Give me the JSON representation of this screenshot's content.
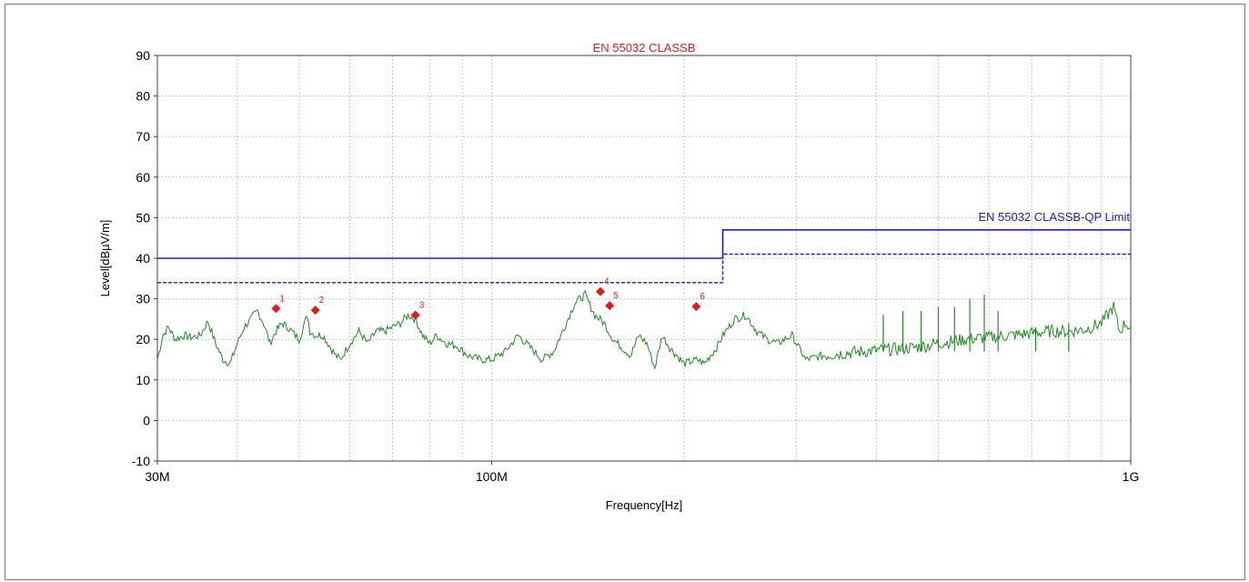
{
  "chart_data": {
    "type": "line",
    "title": "EN 55032 CLASSB",
    "xlabel": "Frequency[Hz]",
    "ylabel": "Level[dBµV/m]",
    "x_scale": "log",
    "xlim": [
      30000000,
      1000000000
    ],
    "ylim": [
      -10,
      90
    ],
    "grid": true,
    "y_ticks": [
      "90",
      "80",
      "70",
      "60",
      "50",
      "40",
      "30",
      "20",
      "10",
      "0",
      "-10"
    ],
    "x_tick_labels": [
      {
        "value": 30000000,
        "label": "30M"
      },
      {
        "value": 100000000,
        "label": "100M"
      },
      {
        "value": 1000000000,
        "label": "1G"
      }
    ],
    "x_minor_grid": [
      40000000,
      50000000,
      60000000,
      70000000,
      80000000,
      90000000,
      200000000,
      300000000,
      400000000,
      500000000,
      600000000,
      700000000,
      800000000,
      900000000
    ],
    "limit_label": "EN 55032 CLASSB-QP Limit",
    "series": [
      {
        "name": "EN 55032 CLASSB-QP Limit",
        "color": "#1c1cd6",
        "style": "solid",
        "x": [
          30000000,
          230000000,
          230000000,
          1000000000
        ],
        "y": [
          40,
          40,
          47,
          47
        ]
      },
      {
        "color": "#1c1cd6",
        "style": "dashed",
        "x": [
          30000000,
          230000000,
          230000000,
          1000000000
        ],
        "y": [
          34,
          34,
          41,
          41
        ]
      },
      {
        "color": "#228b22",
        "style": "solid",
        "x": [
          30000000,
          30600000,
          31200000,
          32000000,
          33000000,
          34000000,
          35000000,
          36000000,
          37000000,
          38000000,
          39000000,
          40000000,
          41000000,
          42000000,
          43000000,
          44000000,
          45000000,
          46000000,
          47000000,
          48000000,
          50000000,
          51500000,
          52000000,
          53000000,
          54500000,
          56000000,
          57000000,
          58000000,
          60000000,
          62000000,
          64000000,
          66000000,
          68000000,
          70000000,
          72000000,
          74000000,
          76000000,
          78000000,
          80000000,
          82000000,
          85000000,
          88000000,
          92000000,
          96000000,
          100000000,
          105000000,
          110000000,
          115000000,
          120000000,
          125000000,
          130000000,
          135000000,
          140000000,
          145000000,
          150000000,
          155000000,
          160000000,
          165000000,
          170000000,
          175000000,
          180000000,
          185000000,
          190000000,
          195000000,
          200000000,
          210000000,
          215000000,
          220000000,
          225000000,
          230000000,
          240000000,
          250000000,
          260000000,
          270000000,
          280000000,
          295000000,
          310000000,
          330000000,
          350000000,
          380000000,
          420000000,
          460000000,
          500000000,
          550000000,
          600000000,
          650000000,
          700000000,
          750000000,
          800000000,
          850000000,
          900000000,
          940000000,
          960000000,
          980000000,
          1000000000
        ],
        "y": [
          15,
          21,
          23,
          20,
          21,
          20.5,
          21,
          24.5,
          19,
          15,
          14,
          19,
          23,
          25,
          27,
          24,
          19,
          22,
          24,
          23,
          20,
          26,
          22,
          21,
          21,
          18,
          16,
          15,
          19,
          22,
          19,
          22,
          22,
          23,
          24,
          26,
          25,
          21,
          19,
          21,
          19,
          18.5,
          16,
          15,
          15,
          17,
          21,
          18,
          15,
          17,
          23,
          29,
          31,
          26,
          24,
          20,
          18,
          16,
          21,
          19,
          13,
          21,
          18,
          16,
          14,
          15,
          14,
          16,
          18,
          21,
          25,
          26,
          22,
          20,
          19,
          21,
          15,
          16,
          16.5,
          17,
          17.5,
          18,
          19,
          20,
          20.5,
          21,
          21.5,
          22,
          22,
          22.5,
          24,
          28,
          22,
          24,
          23
        ]
      }
    ],
    "markers": [
      {
        "label": "1",
        "x": 46000000,
        "y": 27.6
      },
      {
        "label": "2",
        "x": 53000000,
        "y": 27.2
      },
      {
        "label": "3",
        "x": 76000000,
        "y": 26.0
      },
      {
        "label": "4",
        "x": 148000000,
        "y": 31.8
      },
      {
        "label": "5",
        "x": 153000000,
        "y": 28.3
      },
      {
        "label": "6",
        "x": 209000000,
        "y": 28.1
      }
    ],
    "spikes": [
      {
        "x": 410000000,
        "y": 26
      },
      {
        "x": 440000000,
        "y": 27
      },
      {
        "x": 470000000,
        "y": 27
      },
      {
        "x": 500000000,
        "y": 28
      },
      {
        "x": 530000000,
        "y": 28
      },
      {
        "x": 560000000,
        "y": 30
      },
      {
        "x": 590000000,
        "y": 31
      },
      {
        "x": 620000000,
        "y": 27
      },
      {
        "x": 710000000,
        "y": 23
      },
      {
        "x": 800000000,
        "y": 24
      }
    ],
    "colors": {
      "title": "#e41a1a",
      "limit": "#1c1cd6",
      "measurement": "#228b22",
      "marker": "#e41a1a",
      "grid": "#c8c8c8",
      "axis": "#404040"
    }
  }
}
